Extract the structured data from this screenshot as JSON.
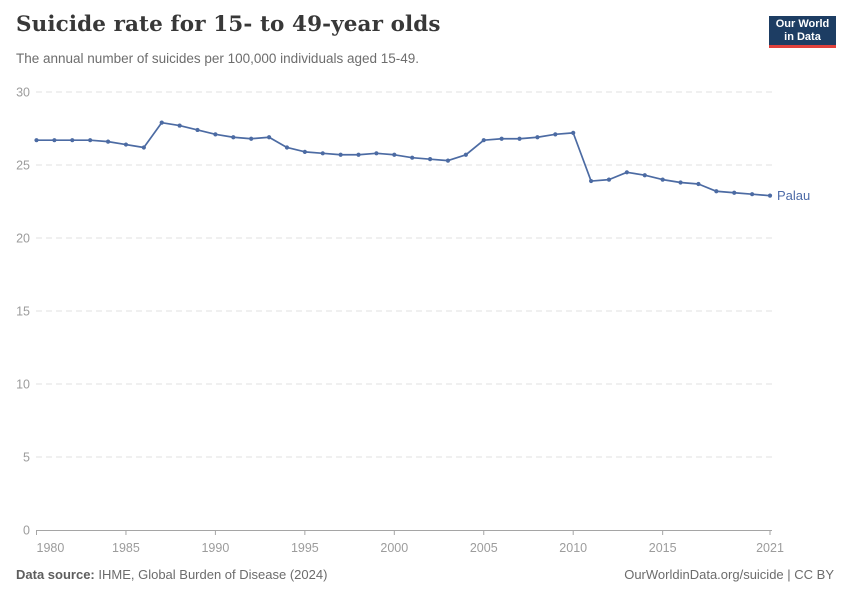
{
  "header": {
    "title": "Suicide rate for 15- to 49-year olds",
    "subtitle": "The annual number of suicides per 100,000 individuals aged 15-49.",
    "logo": {
      "line1": "Our World",
      "line2": "in Data"
    }
  },
  "chart_data": {
    "type": "line",
    "title": "Suicide rate for 15- to 49-year olds",
    "subtitle": "The annual number of suicides per 100,000 individuals aged 15-49.",
    "xlabel": "",
    "ylabel": "",
    "xlim": [
      1980,
      2021
    ],
    "ylim": [
      0,
      30
    ],
    "x_ticks": [
      1980,
      1985,
      1990,
      1995,
      2000,
      2005,
      2010,
      2015,
      2021
    ],
    "y_ticks": [
      0,
      5,
      10,
      15,
      20,
      25,
      30
    ],
    "grid": "horizontal-dashed",
    "legend_position": "end-of-line-label",
    "series": [
      {
        "name": "Palau",
        "color": "#4c6ba3",
        "x": [
          1980,
          1981,
          1982,
          1983,
          1984,
          1985,
          1986,
          1987,
          1988,
          1989,
          1990,
          1991,
          1992,
          1993,
          1994,
          1995,
          1996,
          1997,
          1998,
          1999,
          2000,
          2001,
          2002,
          2003,
          2004,
          2005,
          2006,
          2007,
          2008,
          2009,
          2010,
          2011,
          2012,
          2013,
          2014,
          2015,
          2016,
          2017,
          2018,
          2019,
          2020,
          2021
        ],
        "values": [
          26.7,
          26.7,
          26.7,
          26.7,
          26.6,
          26.4,
          26.2,
          27.9,
          27.7,
          27.4,
          27.1,
          26.9,
          26.8,
          26.9,
          26.2,
          25.9,
          25.8,
          25.7,
          25.7,
          25.8,
          25.7,
          25.5,
          25.4,
          25.3,
          25.7,
          26.7,
          26.8,
          26.8,
          26.9,
          27.1,
          27.2,
          23.9,
          24.0,
          24.5,
          24.3,
          24.0,
          23.8,
          23.7,
          23.2,
          23.1,
          23.0,
          22.9
        ]
      }
    ]
  },
  "footer": {
    "data_source_label": "Data source:",
    "data_source_value": " IHME, Global Burden of Disease (2024)",
    "attribution": "OurWorldinData.org/suicide | CC BY"
  },
  "colors": {
    "line": "#4c6ba3",
    "series_label": "#4d6ba8",
    "logo_bg": "#1d3d63",
    "logo_accent": "#e0413c",
    "grid": "#e2e2e2",
    "axis": "#a5a5a5",
    "tick_text": "#9c9c9c",
    "title_text": "#383838",
    "subtitle_text": "#6d6d6d",
    "footer_text": "#6c6c6c"
  }
}
